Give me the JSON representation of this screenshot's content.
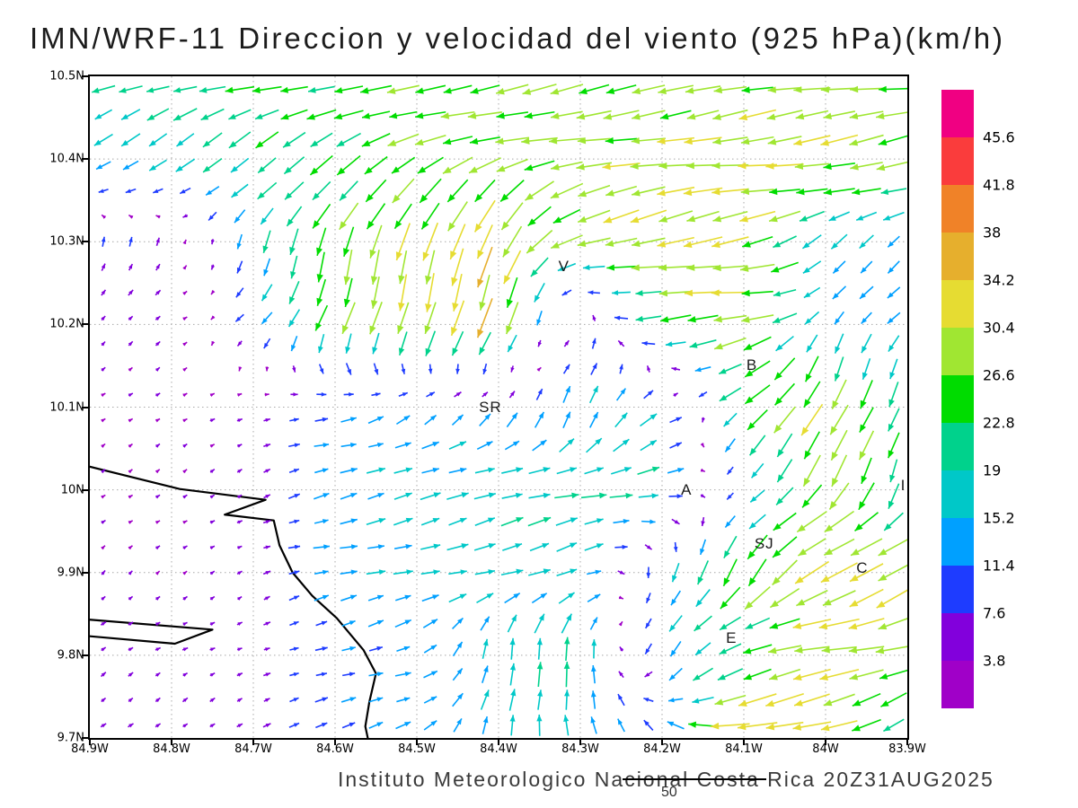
{
  "chart_data": {
    "type": "scatter",
    "subtype": "wind-vector-field",
    "title": "IMN/WRF-11 Direccion y velocidad del viento (925 hPa)(km/h)",
    "model": "IMN/WRF-11",
    "variable": "Direccion y velocidad del viento",
    "level": "925 hPa",
    "units": "km/h",
    "valid_time": "20Z31AUG2025",
    "institution": "Instituto Meteorologico Nacional Costa Rica",
    "footer_text": "Instituto Meteorologico Nacional Costa Rica 20Z31AUG2025",
    "reference_speed": 50,
    "reference_label": "50",
    "lat_tick_labels": [
      "10.5N",
      "10.4N",
      "10.3N",
      "10.2N",
      "10.1N",
      "10N",
      "9.9N",
      "9.8N",
      "9.7N"
    ],
    "lat_tick_values": [
      10.5,
      10.4,
      10.3,
      10.2,
      10.1,
      10.0,
      9.9,
      9.8,
      9.7
    ],
    "lon_tick_labels": [
      "84.9W",
      "84.8W",
      "84.7W",
      "84.6W",
      "84.5W",
      "84.4W",
      "84.3W",
      "84.2W",
      "84.1W",
      "84W",
      "83.9W"
    ],
    "lon_tick_values": [
      84.9,
      84.8,
      84.7,
      84.6,
      84.5,
      84.4,
      84.3,
      84.2,
      84.1,
      84.0,
      83.9
    ],
    "lat_range": [
      9.7,
      10.5
    ],
    "lon_range": [
      83.9,
      84.9
    ],
    "grid": "dotted",
    "colorbar": {
      "position": "right",
      "levels": [
        3.8,
        7.6,
        11.4,
        15.2,
        19,
        22.8,
        26.6,
        30.4,
        34.2,
        38,
        41.8,
        45.6
      ],
      "colors": [
        "#a000c8",
        "#8200dc",
        "#1e3cff",
        "#00a0ff",
        "#00c8c8",
        "#00d28c",
        "#00dc00",
        "#a0e632",
        "#e6dc32",
        "#e6af2d",
        "#f08228",
        "#fa3c3c",
        "#f00082"
      ]
    },
    "stations": [
      {
        "label": "V",
        "lat": 10.27,
        "lon": 84.32
      },
      {
        "label": "B",
        "lat": 10.15,
        "lon": 84.09
      },
      {
        "label": "SR",
        "lat": 10.1,
        "lon": 84.41
      },
      {
        "label": "A",
        "lat": 10.0,
        "lon": 84.17
      },
      {
        "label": "SJ",
        "lat": 9.935,
        "lon": 84.075
      },
      {
        "label": "C",
        "lat": 9.905,
        "lon": 83.955
      },
      {
        "label": "E",
        "lat": 9.82,
        "lon": 84.115
      },
      {
        "label": "I",
        "lat": 10.005,
        "lon": 83.905
      }
    ],
    "wind_grid": {
      "comment": "u = eastward, v = northward wind components in km/h on 0.1 deg grid",
      "lats": [
        10.5,
        10.4,
        10.3,
        10.2,
        10.1,
        10.0,
        9.9,
        9.8,
        9.7
      ],
      "lons": [
        84.9,
        84.8,
        84.7,
        84.6,
        84.5,
        84.4,
        84.3,
        84.2,
        84.1,
        84.0,
        83.9
      ],
      "u": [
        [
          -18,
          -21,
          -23,
          -24,
          -25,
          -26,
          -27,
          -27,
          -28,
          -28,
          -26
        ],
        [
          -13,
          -15,
          -17,
          -20,
          -24,
          -27,
          -28,
          -29,
          -30,
          -30,
          -28
        ],
        [
          2,
          3,
          -6,
          -8,
          -8,
          -10,
          -26,
          -30,
          -30,
          -14,
          -10
        ],
        [
          3,
          4,
          -8,
          -7,
          -8,
          -14,
          6,
          -24,
          -30,
          -6,
          -10
        ],
        [
          3,
          3,
          4,
          12,
          10,
          8,
          5,
          14,
          -18,
          -12,
          -6
        ],
        [
          3,
          3,
          4,
          14,
          16,
          18,
          20,
          18,
          -8,
          -18,
          -6
        ],
        [
          3,
          3,
          4,
          14,
          15,
          17,
          16,
          -4,
          -16,
          -30,
          -28
        ],
        [
          4,
          4,
          4,
          10,
          12,
          2,
          3,
          -8,
          -20,
          -32,
          -26
        ],
        [
          4,
          4,
          5,
          12,
          12,
          3,
          -6,
          -10,
          -38,
          -30,
          -14
        ]
      ],
      "v": [
        [
          -4,
          -5,
          -5,
          -6,
          -5,
          -4,
          -4,
          -3,
          -3,
          -4,
          -4
        ],
        [
          -9,
          -11,
          -12,
          -12,
          -10,
          -8,
          -6,
          -5,
          -4,
          -4,
          -5
        ],
        [
          8,
          6,
          -15,
          -26,
          -30,
          -32,
          -8,
          -6,
          -5,
          -10,
          -8
        ],
        [
          3,
          3,
          -8,
          -24,
          -28,
          -30,
          8,
          -2,
          -3,
          -12,
          -10
        ],
        [
          2,
          2,
          2,
          3,
          8,
          10,
          16,
          8,
          -18,
          -28,
          -20
        ],
        [
          2,
          2,
          2,
          3,
          4,
          4,
          4,
          5,
          -6,
          -24,
          -18
        ],
        [
          3,
          2,
          2,
          3,
          4,
          5,
          6,
          -12,
          -24,
          -12,
          -14
        ],
        [
          3,
          2,
          2,
          3,
          4,
          18,
          22,
          -14,
          -6,
          -6,
          -8
        ],
        [
          3,
          3,
          2,
          3,
          4,
          18,
          14,
          10,
          -8,
          -6,
          -10
        ]
      ]
    },
    "coastline": [
      [
        [
          84.9,
          10.028
        ],
        [
          84.79,
          10.001
        ],
        [
          84.685,
          9.988
        ],
        [
          84.735,
          9.97
        ],
        [
          84.675,
          9.963
        ],
        [
          84.668,
          9.933
        ],
        [
          84.652,
          9.9
        ],
        [
          84.628,
          9.872
        ],
        [
          84.598,
          9.845
        ],
        [
          84.565,
          9.806
        ],
        [
          84.55,
          9.778
        ],
        [
          84.558,
          9.744
        ],
        [
          84.563,
          9.714
        ],
        [
          84.56,
          9.7
        ]
      ],
      [
        [
          84.9,
          9.843
        ],
        [
          84.75,
          9.831
        ],
        [
          84.796,
          9.814
        ],
        [
          84.9,
          9.823
        ]
      ]
    ]
  }
}
